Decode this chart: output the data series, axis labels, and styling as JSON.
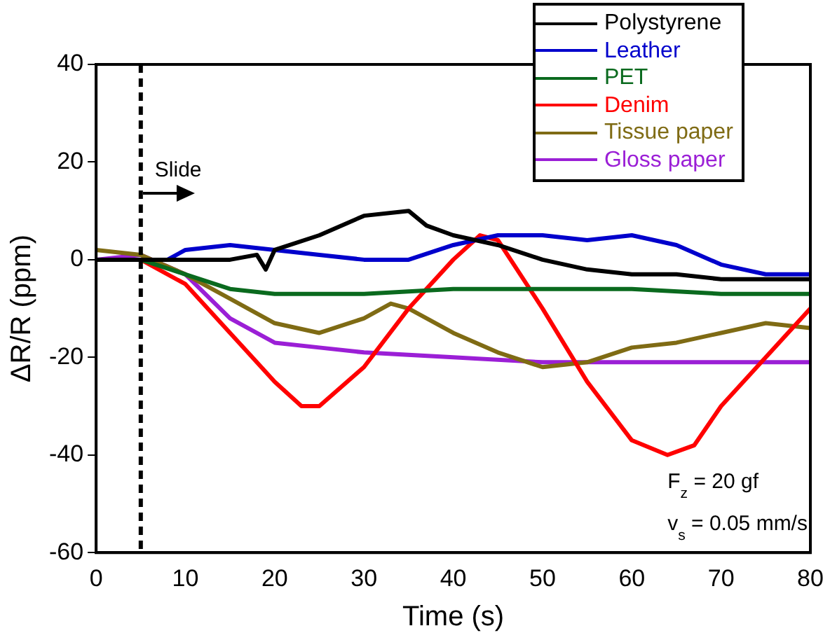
{
  "chart_data": {
    "type": "line",
    "xlabel": "Time (s)",
    "ylabel": "ΔR/R (ppm)",
    "xlim": [
      0,
      80
    ],
    "ylim": [
      -60,
      40
    ],
    "xticks": [
      0,
      10,
      20,
      30,
      40,
      50,
      60,
      70,
      80
    ],
    "yticks": [
      -60,
      -40,
      -20,
      0,
      20,
      40
    ],
    "grid": false,
    "legend": "top right",
    "marker": "none",
    "line_style": "solid",
    "series": [
      {
        "name": "Polystyrene",
        "color": "#000000",
        "x": [
          0,
          5,
          10,
          15,
          18,
          19,
          20,
          25,
          30,
          35,
          37,
          40,
          45,
          50,
          55,
          60,
          65,
          70,
          75,
          80
        ],
        "values": [
          0,
          0,
          0,
          0,
          1,
          -2,
          2,
          5,
          9,
          10,
          7,
          5,
          3,
          0,
          -2,
          -3,
          -3,
          -4,
          -4,
          -4
        ]
      },
      {
        "name": "Leather",
        "color": "#0000cc",
        "x": [
          0,
          5,
          8,
          10,
          15,
          20,
          25,
          30,
          35,
          40,
          45,
          50,
          55,
          60,
          65,
          70,
          75,
          80
        ],
        "values": [
          0,
          0,
          0,
          2,
          3,
          2,
          1,
          0,
          0,
          3,
          5,
          5,
          4,
          5,
          3,
          -1,
          -3,
          -3
        ]
      },
      {
        "name": "PET",
        "color": "#0a6a1e",
        "x": [
          0,
          5,
          10,
          15,
          20,
          30,
          40,
          50,
          60,
          70,
          80
        ],
        "values": [
          0,
          0,
          -3,
          -6,
          -7,
          -7,
          -6,
          -6,
          -6,
          -7,
          -7
        ]
      },
      {
        "name": "Denim",
        "color": "#ff0000",
        "x": [
          0,
          5,
          10,
          15,
          20,
          23,
          25,
          30,
          35,
          40,
          43,
          45,
          50,
          55,
          60,
          64,
          67,
          70,
          75,
          80
        ],
        "values": [
          0,
          0,
          -5,
          -15,
          -25,
          -30,
          -30,
          -22,
          -10,
          0,
          5,
          4,
          -10,
          -25,
          -37,
          -40,
          -38,
          -30,
          -20,
          -10
        ]
      },
      {
        "name": "Tissue paper",
        "color": "#7f6b14",
        "x": [
          0,
          5,
          10,
          15,
          20,
          25,
          30,
          33,
          35,
          40,
          45,
          50,
          55,
          60,
          65,
          70,
          75,
          80
        ],
        "values": [
          2,
          1,
          -3,
          -8,
          -13,
          -15,
          -12,
          -9,
          -10,
          -15,
          -19,
          -22,
          -21,
          -18,
          -17,
          -15,
          -13,
          -14
        ]
      },
      {
        "name": "Gloss paper",
        "color": "#9b1fd6",
        "x": [
          0,
          5,
          10,
          15,
          20,
          25,
          30,
          40,
          50,
          60,
          70,
          80
        ],
        "values": [
          0,
          1,
          -3,
          -12,
          -17,
          -18,
          -19,
          -20,
          -21,
          -21,
          -21,
          -21
        ]
      }
    ],
    "ref_lines": [
      {
        "axis": "x",
        "value": 5,
        "color": "#000000",
        "line_style": "dashed"
      }
    ],
    "annotations": [
      "Slide",
      "F$_{z}$ = 20 gf",
      "v$_{s}$ = 0.05 mm/s"
    ]
  }
}
